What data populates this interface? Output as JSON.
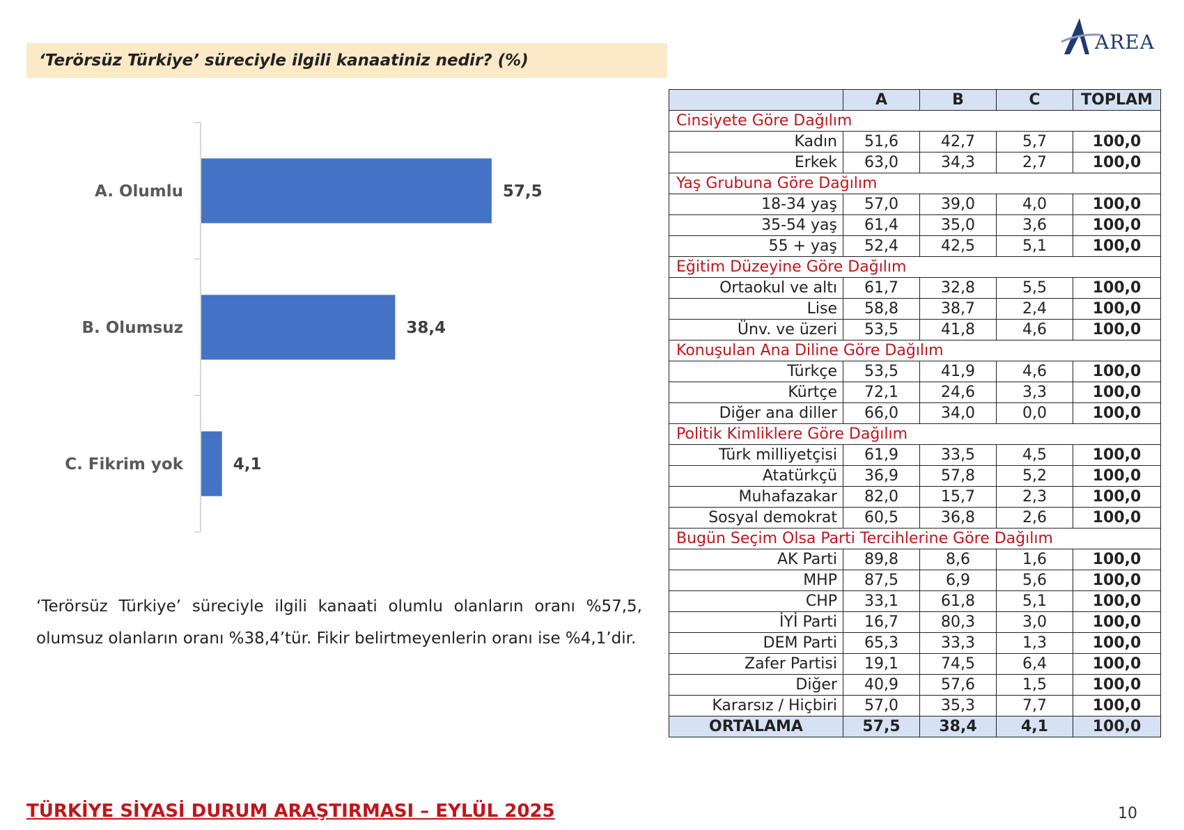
{
  "question": "‘Terörsüz Türkiye’ süreciyle ilgili kanaatiniz nedir? (%)",
  "logo": {
    "text": "AREA",
    "colors": {
      "primary": "#1f3a70"
    }
  },
  "chart_data": {
    "type": "bar",
    "orientation": "horizontal",
    "categories": [
      "A. Olumlu",
      "B. Olumsuz",
      "C. Fikrim yok"
    ],
    "values": [
      57.5,
      38.4,
      4.1
    ],
    "value_labels": [
      "57,5",
      "38,4",
      "4,1"
    ],
    "xlim": [
      0,
      100
    ],
    "grid": false,
    "color": "#4472c4"
  },
  "summary": "‘Terörsüz Türkiye’ süreciyle ilgili kanaati olumlu olanların oranı %57,5, olumsuz olanların oranı %38,4’tür. Fikir belirtmeyenlerin oranı ise %4,1’dir.",
  "table": {
    "headers": [
      "",
      "A",
      "B",
      "C",
      "TOPLAM"
    ],
    "groups": [
      {
        "title": "Cinsiyete Göre Dağılım",
        "rows": [
          [
            "Kadın",
            "51,6",
            "42,7",
            "5,7",
            "100,0"
          ],
          [
            "Erkek",
            "63,0",
            "34,3",
            "2,7",
            "100,0"
          ]
        ]
      },
      {
        "title": "Yaş Grubuna Göre Dağılım",
        "rows": [
          [
            "18-34 yaş",
            "57,0",
            "39,0",
            "4,0",
            "100,0"
          ],
          [
            "35-54 yaş",
            "61,4",
            "35,0",
            "3,6",
            "100,0"
          ],
          [
            "55 + yaş",
            "52,4",
            "42,5",
            "5,1",
            "100,0"
          ]
        ]
      },
      {
        "title": "Eğitim Düzeyine Göre Dağılım",
        "rows": [
          [
            "Ortaokul ve altı",
            "61,7",
            "32,8",
            "5,5",
            "100,0"
          ],
          [
            "Lise",
            "58,8",
            "38,7",
            "2,4",
            "100,0"
          ],
          [
            "Ünv. ve üzeri",
            "53,5",
            "41,8",
            "4,6",
            "100,0"
          ]
        ]
      },
      {
        "title": "Konuşulan Ana Diline Göre Dağılım",
        "rows": [
          [
            "Türkçe",
            "53,5",
            "41,9",
            "4,6",
            "100,0"
          ],
          [
            "Kürtçe",
            "72,1",
            "24,6",
            "3,3",
            "100,0"
          ],
          [
            "Diğer ana diller",
            "66,0",
            "34,0",
            "0,0",
            "100,0"
          ]
        ]
      },
      {
        "title": "Politik Kimliklere Göre Dağılım",
        "rows": [
          [
            "Türk milliyetçisi",
            "61,9",
            "33,5",
            "4,5",
            "100,0"
          ],
          [
            "Atatürkçü",
            "36,9",
            "57,8",
            "5,2",
            "100,0"
          ],
          [
            "Muhafazakar",
            "82,0",
            "15,7",
            "2,3",
            "100,0"
          ],
          [
            "Sosyal demokrat",
            "60,5",
            "36,8",
            "2,6",
            "100,0"
          ]
        ]
      },
      {
        "title": "Bugün Seçim Olsa Parti Tercihlerine Göre Dağılım",
        "rows": [
          [
            "AK Parti",
            "89,8",
            "8,6",
            "1,6",
            "100,0"
          ],
          [
            "MHP",
            "87,5",
            "6,9",
            "5,6",
            "100,0"
          ],
          [
            "CHP",
            "33,1",
            "61,8",
            "5,1",
            "100,0"
          ],
          [
            "İYİ Parti",
            "16,7",
            "80,3",
            "3,0",
            "100,0"
          ],
          [
            "DEM Parti",
            "65,3",
            "33,3",
            "1,3",
            "100,0"
          ],
          [
            "Zafer Partisi",
            "19,1",
            "74,5",
            "6,4",
            "100,0"
          ],
          [
            "Diğer",
            "40,9",
            "57,6",
            "1,5",
            "100,0"
          ],
          [
            "Kararsız / Hiçbiri",
            "57,0",
            "35,3",
            "7,7",
            "100,0"
          ]
        ]
      }
    ],
    "average": [
      "ORTALAMA",
      "57,5",
      "38,4",
      "4,1",
      "100,0"
    ],
    "colors": {
      "header_bg": "#d6e2f3",
      "group_title": "#c0161c"
    }
  },
  "footer": "TÜRKİYE SİYASİ DURUM ARAŞTIRMASI – EYLÜL 2025",
  "page_number": "10"
}
